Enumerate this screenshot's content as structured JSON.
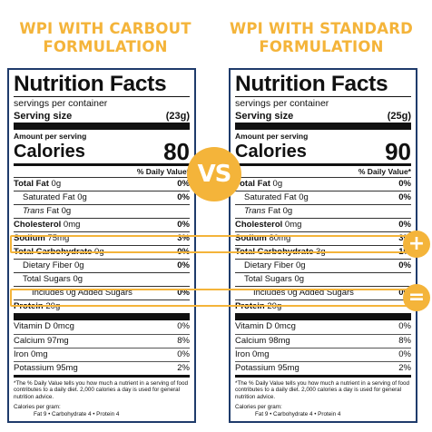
{
  "headings": {
    "left": [
      "WPI WITH CARBOUT",
      "FORMULATION"
    ],
    "right": [
      "WPI WITH STANDARD",
      "FORMULATION"
    ]
  },
  "vs": "VS",
  "operators": {
    "plus": "+",
    "equals": "="
  },
  "highlight_color": "#f4b43a",
  "labels": {
    "left": {
      "title": "Nutrition Facts",
      "servings": "servings per container",
      "serving_size_label": "Serving size",
      "serving_size_value": "(23g)",
      "amount_per_serving": "Amount per serving",
      "calories_label": "Calories",
      "calories_value": "80",
      "dv_header": "% Daily Value*",
      "total_fat": {
        "name": "Total Fat",
        "amount": "0g",
        "dv": "0%"
      },
      "sat_fat": {
        "name": "Saturated Fat 0g",
        "dv": "0%"
      },
      "trans_fat": {
        "name_italic": "Trans",
        "name_rest": " Fat 0g"
      },
      "cholesterol": {
        "name": "Cholesterol",
        "amount": "0mg",
        "dv": "0%"
      },
      "sodium": {
        "name": "Sodium",
        "amount": "75mg",
        "dv": "3%"
      },
      "carbohydrate": {
        "name": "Total Carbohydrate",
        "amount": "0g",
        "dv": "0%"
      },
      "fiber": {
        "name": "Dietary Fiber 0g",
        "dv": "0%"
      },
      "sugars": {
        "name": "Total Sugars 0g"
      },
      "added_sugars": {
        "name": "Includes 0g Added Sugars",
        "dv": "0%"
      },
      "protein": {
        "name": "Protein",
        "amount": "20g"
      },
      "vitamin_d": {
        "name": "Vitamin D 0mcg",
        "dv": "0%"
      },
      "calcium": {
        "name": "Calcium 97mg",
        "dv": "8%"
      },
      "iron": {
        "name": "Iron 0mg",
        "dv": "0%"
      },
      "potassium": {
        "name": "Potassium 95mg",
        "dv": "2%"
      },
      "footnote": "*The % Daily Value tells you how much a nutrient in a serving of food contributes to a daily diet. 2,000 calories a day is used for general nutrition advice.",
      "calories_per_gram": "Calories per gram:",
      "cpg_values": "Fat 9  •  Carbohydrate 4  •  Protein 4"
    },
    "right": {
      "title": "Nutrition Facts",
      "servings": "servings per container",
      "serving_size_label": "Serving size",
      "serving_size_value": "(25g)",
      "amount_per_serving": "Amount per serving",
      "calories_label": "Calories",
      "calories_value": "90",
      "dv_header": "% Daily Value*",
      "total_fat": {
        "name": "Total Fat",
        "amount": "0g",
        "dv": "0%"
      },
      "sat_fat": {
        "name": "Saturated Fat 0g",
        "dv": "0%"
      },
      "trans_fat": {
        "name_italic": "Trans",
        "name_rest": " Fat 0g"
      },
      "cholesterol": {
        "name": "Cholesterol",
        "amount": "0mg",
        "dv": "0%"
      },
      "sodium": {
        "name": "Sodium",
        "amount": "80mg",
        "dv": "3%"
      },
      "carbohydrate": {
        "name": "Total Carbohydrate",
        "amount": "3g",
        "dv": "1%"
      },
      "fiber": {
        "name": "Dietary Fiber 0g",
        "dv": "0%"
      },
      "sugars": {
        "name": "Total Sugars 0g"
      },
      "added_sugars": {
        "name": "Includes 0g Added Sugars",
        "dv": "0%"
      },
      "protein": {
        "name": "Protein",
        "amount": "20g"
      },
      "vitamin_d": {
        "name": "Vitamin D 0mcg",
        "dv": "0%"
      },
      "calcium": {
        "name": "Calcium 98mg",
        "dv": "8%"
      },
      "iron": {
        "name": "Iron 0mg",
        "dv": "0%"
      },
      "potassium": {
        "name": "Potassium 95mg",
        "dv": "2%"
      },
      "footnote": "*The % Daily Value tells you how much a nutrient in a serving of food contributes to a daily diet. 2,000 calories a day is used for general nutrition advice.",
      "calories_per_gram": "Calories per gram:",
      "cpg_values": "Fat 9  •  Carbohydrate 4  •  Protein 4"
    }
  }
}
